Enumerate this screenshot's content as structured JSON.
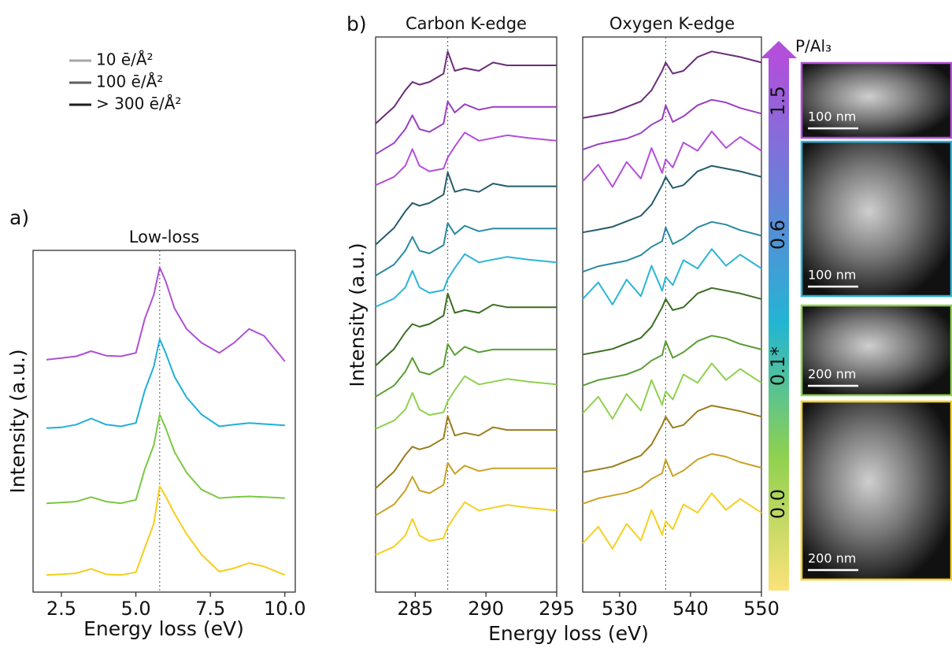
{
  "figure": {
    "panel_labels": [
      "a)",
      "b)"
    ],
    "legend": [
      {
        "label": "10 ē/Å²",
        "color": "#a6a6a6"
      },
      {
        "label": "100 ē/Å²",
        "color": "#5e5e5e"
      },
      {
        "label": "> 300 ē/Å²",
        "color": "#1e1e1e"
      }
    ],
    "colorbar": {
      "label": "P/Al₃",
      "ticks": [
        "0.0",
        "0.1*",
        "0.6",
        "1.5"
      ],
      "colors": [
        "#fbe27a",
        "#8fd14f",
        "#23b5d3",
        "#6a7fd8",
        "#b24fdb"
      ]
    },
    "images": [
      {
        "scale_bar": "100 nm",
        "border": "#b44fdb"
      },
      {
        "scale_bar": "100 nm",
        "border": "#2bb5d8"
      },
      {
        "scale_bar": "200 nm",
        "border": "#8fd14f"
      },
      {
        "scale_bar": "200 nm",
        "border": "#f5d020"
      }
    ]
  },
  "chart_data": [
    {
      "type": "line",
      "title": "Low-loss",
      "xlabel": "Energy loss (eV)",
      "ylabel": "Intensity (a.u.)",
      "x": [
        2,
        2.5,
        3,
        3.5,
        4,
        4.5,
        5,
        5.3,
        5.6,
        5.8,
        6.0,
        6.3,
        6.7,
        7.2,
        7.8,
        8.3,
        8.8,
        9.3,
        10
      ],
      "xlim": [
        1.55,
        10.35
      ],
      "ylim": [
        0,
        10
      ],
      "xticks": [
        {
          "value": 2.5,
          "label": "2.5"
        },
        {
          "value": 5,
          "label": "5.0"
        },
        {
          "value": 7.5,
          "label": "7.5"
        },
        {
          "value": 10,
          "label": "10.0"
        }
      ],
      "vline": 5.8,
      "series": [
        {
          "color": "#f5cd1c",
          "values": [
            0.5,
            0.52,
            0.55,
            0.68,
            0.52,
            0.5,
            0.58,
            1.3,
            2.0,
            3.1,
            2.8,
            2.3,
            1.7,
            1.1,
            0.6,
            0.7,
            0.85,
            0.75,
            0.5
          ]
        },
        {
          "color": "#7ac943",
          "values": [
            2.6,
            2.62,
            2.65,
            2.78,
            2.65,
            2.6,
            2.7,
            3.6,
            4.3,
            5.2,
            4.8,
            4.1,
            3.5,
            3.0,
            2.75,
            2.78,
            2.8,
            2.78,
            2.75
          ]
        },
        {
          "color": "#1fb0d6",
          "values": [
            4.8,
            4.82,
            4.9,
            5.08,
            4.9,
            4.85,
            4.95,
            5.9,
            6.6,
            7.4,
            7.0,
            6.3,
            5.7,
            5.2,
            4.85,
            4.9,
            4.95,
            4.92,
            4.88
          ]
        },
        {
          "color": "#b04fd6",
          "values": [
            6.8,
            6.85,
            6.9,
            7.05,
            6.92,
            6.9,
            7.0,
            8.0,
            8.7,
            9.5,
            9.1,
            8.3,
            7.7,
            7.3,
            7.0,
            7.3,
            7.7,
            7.5,
            6.75
          ]
        }
      ]
    },
    {
      "type": "line",
      "title": "Carbon K-edge",
      "xlabel": "Energy loss (eV)",
      "ylabel": "Intensity (a.u.)",
      "x": [
        282.2,
        283.5,
        284.3,
        284.8,
        285.3,
        286,
        287,
        287.3,
        287.8,
        288.5,
        289.5,
        290.5,
        291.5,
        293,
        295
      ],
      "xlim": [
        282.2,
        295
      ],
      "ylim": [
        0,
        10
      ],
      "xticks": [
        285,
        290,
        295
      ],
      "vline": 287.3,
      "series": [
        {
          "color": "#f5d020",
          "values": [
            0.67,
            0.82,
            1.02,
            1.32,
            1.02,
            0.92,
            0.97,
            1.17,
            1.37,
            1.62,
            1.47,
            1.52,
            1.57,
            1.52,
            1.47
          ]
        },
        {
          "color": "#c9a227",
          "values": [
            1.38,
            1.58,
            1.83,
            2.08,
            1.83,
            1.78,
            1.93,
            2.33,
            2.13,
            2.28,
            2.18,
            2.23,
            2.23,
            2.23,
            2.23
          ]
        },
        {
          "color": "#9a7d1a",
          "values": [
            1.87,
            2.17,
            2.47,
            2.62,
            2.57,
            2.62,
            2.77,
            3.17,
            2.82,
            2.87,
            2.82,
            2.97,
            2.92,
            2.92,
            2.92
          ]
        },
        {
          "color": "#8fd14f",
          "values": [
            2.94,
            3.09,
            3.29,
            3.59,
            3.29,
            3.19,
            3.24,
            3.44,
            3.64,
            3.89,
            3.74,
            3.79,
            3.84,
            3.79,
            3.74
          ]
        },
        {
          "color": "#5a9e35",
          "values": [
            3.52,
            3.72,
            3.97,
            4.22,
            3.97,
            3.92,
            4.07,
            4.47,
            4.27,
            4.42,
            4.32,
            4.37,
            4.37,
            4.37,
            4.37
          ]
        },
        {
          "color": "#3b6e23",
          "values": [
            4.08,
            4.38,
            4.68,
            4.83,
            4.78,
            4.83,
            4.98,
            5.38,
            5.03,
            5.08,
            5.03,
            5.18,
            5.13,
            5.13,
            5.13
          ]
        },
        {
          "color": "#2bb5d8",
          "values": [
            5.14,
            5.29,
            5.49,
            5.79,
            5.49,
            5.39,
            5.44,
            5.64,
            5.84,
            6.09,
            5.94,
            5.99,
            6.04,
            5.99,
            5.94
          ]
        },
        {
          "color": "#2a8aa0",
          "values": [
            5.7,
            5.9,
            6.15,
            6.4,
            6.15,
            6.1,
            6.25,
            6.65,
            6.45,
            6.6,
            6.5,
            6.55,
            6.55,
            6.55,
            6.55
          ]
        },
        {
          "color": "#245c6b",
          "values": [
            6.26,
            6.56,
            6.86,
            7.01,
            6.96,
            7.01,
            7.16,
            7.56,
            7.21,
            7.26,
            7.21,
            7.36,
            7.31,
            7.31,
            7.31
          ]
        },
        {
          "color": "#b44fdb",
          "values": [
            7.33,
            7.48,
            7.68,
            7.98,
            7.68,
            7.58,
            7.63,
            7.83,
            8.03,
            8.28,
            8.13,
            8.18,
            8.23,
            8.18,
            8.13
          ]
        },
        {
          "color": "#9a3fc4",
          "values": [
            7.89,
            8.09,
            8.34,
            8.59,
            8.34,
            8.29,
            8.44,
            8.84,
            8.64,
            8.79,
            8.69,
            8.74,
            8.74,
            8.74,
            8.74
          ]
        },
        {
          "color": "#6b2d7a",
          "values": [
            8.44,
            8.74,
            9.04,
            9.19,
            9.14,
            9.19,
            9.34,
            9.74,
            9.39,
            9.44,
            9.39,
            9.54,
            9.49,
            9.49,
            9.49
          ]
        }
      ]
    },
    {
      "type": "line",
      "title": "Oxygen K-edge",
      "x": [
        524.8,
        527,
        529,
        531,
        533,
        534.5,
        536,
        536.5,
        537.5,
        539,
        541,
        543,
        545,
        547,
        550
      ],
      "xlim": [
        524.8,
        550
      ],
      "ylim": [
        0,
        10
      ],
      "xticks": [
        530,
        540,
        550
      ],
      "vline": 536.5,
      "series": [
        {
          "color": "#f5d020",
          "values": [
            0.88,
            1.18,
            0.78,
            1.23,
            0.93,
            1.48,
            1.03,
            1.28,
            1.13,
            1.58,
            1.43,
            1.78,
            1.48,
            1.68,
            1.43
          ]
        },
        {
          "color": "#c9a227",
          "values": [
            1.59,
            1.69,
            1.74,
            1.79,
            1.89,
            2.04,
            2.14,
            2.39,
            2.09,
            2.19,
            2.39,
            2.49,
            2.44,
            2.34,
            2.24
          ]
        },
        {
          "color": "#9a7d1a",
          "values": [
            2.16,
            2.21,
            2.26,
            2.36,
            2.46,
            2.66,
            3.01,
            3.16,
            2.96,
            3.01,
            3.26,
            3.36,
            3.31,
            3.26,
            3.16
          ]
        },
        {
          "color": "#8fd14f",
          "values": [
            3.22,
            3.52,
            3.12,
            3.57,
            3.27,
            3.82,
            3.37,
            3.62,
            3.47,
            3.92,
            3.77,
            4.12,
            3.82,
            4.02,
            3.77
          ]
        },
        {
          "color": "#5a9e35",
          "values": [
            3.72,
            3.82,
            3.87,
            3.92,
            4.02,
            4.17,
            4.27,
            4.52,
            4.22,
            4.32,
            4.52,
            4.62,
            4.57,
            4.47,
            4.37
          ]
        },
        {
          "color": "#3b6e23",
          "values": [
            4.28,
            4.33,
            4.38,
            4.48,
            4.58,
            4.78,
            5.13,
            5.28,
            5.08,
            5.13,
            5.38,
            5.48,
            5.43,
            5.38,
            5.28
          ]
        },
        {
          "color": "#2bb5d8",
          "values": [
            5.28,
            5.58,
            5.18,
            5.63,
            5.33,
            5.88,
            5.43,
            5.68,
            5.53,
            5.98,
            5.83,
            6.18,
            5.88,
            6.08,
            5.83
          ]
        },
        {
          "color": "#2a8aa0",
          "values": [
            5.77,
            5.87,
            5.92,
            5.97,
            6.07,
            6.22,
            6.32,
            6.57,
            6.27,
            6.37,
            6.57,
            6.67,
            6.62,
            6.52,
            6.42
          ]
        },
        {
          "color": "#245c6b",
          "values": [
            6.48,
            6.53,
            6.58,
            6.68,
            6.78,
            6.98,
            7.33,
            7.48,
            7.28,
            7.33,
            7.58,
            7.68,
            7.63,
            7.58,
            7.48
          ]
        },
        {
          "color": "#b44fdb",
          "values": [
            7.4,
            7.7,
            7.3,
            7.75,
            7.45,
            8.0,
            7.55,
            7.8,
            7.65,
            8.1,
            7.95,
            8.3,
            8.0,
            8.2,
            7.95
          ]
        },
        {
          "color": "#9a3fc4",
          "values": [
            7.97,
            8.07,
            8.12,
            8.17,
            8.27,
            8.42,
            8.52,
            8.77,
            8.47,
            8.57,
            8.77,
            8.87,
            8.82,
            8.72,
            8.62
          ]
        },
        {
          "color": "#6b2d7a",
          "values": [
            8.54,
            8.59,
            8.64,
            8.74,
            8.84,
            9.04,
            9.39,
            9.54,
            9.34,
            9.39,
            9.64,
            9.74,
            9.69,
            9.64,
            9.54
          ]
        }
      ]
    }
  ]
}
